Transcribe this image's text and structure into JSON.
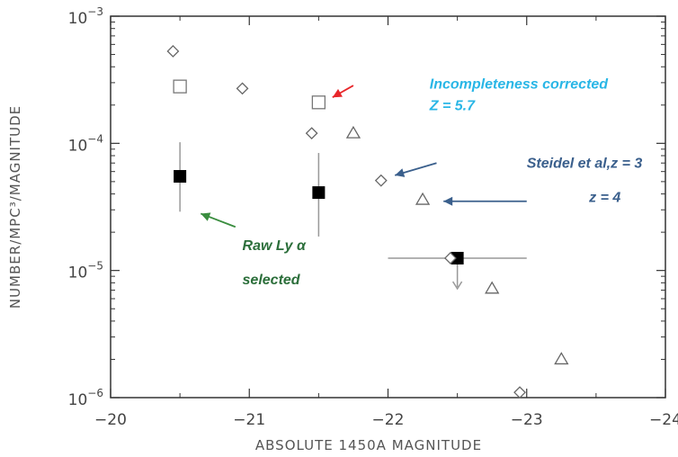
{
  "chart_data": {
    "type": "scatter",
    "xlabel": "ABSOLUTE 1450A MAGNITUDE",
    "ylabel": "NUMBER/MPC³/MAGNITUDE",
    "xlim": [
      -20,
      -24
    ],
    "ylim": [
      1e-06,
      0.001
    ],
    "y_scale": "log",
    "grid": false,
    "x_ticks": [
      -20,
      -21,
      -22,
      -23,
      -24
    ],
    "x_tick_labels": [
      "−20",
      "−21",
      "−22",
      "−23",
      "−24"
    ],
    "y_ticks": [
      {
        "value": 1e-06,
        "base": "10",
        "exp": "−6"
      },
      {
        "value": 1e-05,
        "base": "10",
        "exp": "−5"
      },
      {
        "value": 0.0001,
        "base": "10",
        "exp": "−4"
      },
      {
        "value": 0.001,
        "base": "10",
        "exp": "−3"
      }
    ],
    "series": [
      {
        "marker": "filled-square",
        "color": "#000000",
        "points": [
          {
            "x": -20.5,
            "y": 5.5e-05,
            "y_low": 2.9e-05,
            "y_high": 0.000102
          },
          {
            "x": -21.5,
            "y": 4.1e-05,
            "y_low": 1.85e-05,
            "y_high": 8.4e-05
          },
          {
            "x": -22.5,
            "y": 1.25e-05,
            "x_low": -22.0,
            "x_high": -23.0,
            "upper_limit": true
          }
        ]
      },
      {
        "marker": "open-square",
        "color": "#777777",
        "points": [
          {
            "x": -20.5,
            "y": 0.00028
          },
          {
            "x": -21.5,
            "y": 0.00021
          }
        ]
      },
      {
        "marker": "open-diamond",
        "color": "#666666",
        "points": [
          {
            "x": -20.45,
            "y": 0.00053
          },
          {
            "x": -20.95,
            "y": 0.00027
          },
          {
            "x": -21.45,
            "y": 0.00012
          },
          {
            "x": -21.95,
            "y": 5.1e-05
          },
          {
            "x": -22.45,
            "y": 1.25e-05
          },
          {
            "x": -22.95,
            "y": 1.1e-06
          }
        ]
      },
      {
        "marker": "open-triangle",
        "color": "#666666",
        "points": [
          {
            "x": -21.75,
            "y": 0.00012
          },
          {
            "x": -22.25,
            "y": 3.6e-05
          },
          {
            "x": -22.75,
            "y": 7.2e-06
          },
          {
            "x": -23.25,
            "y": 2e-06
          }
        ]
      }
    ],
    "annotations": [
      {
        "lines": [
          "Incompleteness corrected",
          "Z = 5.7"
        ],
        "color": "#29b6e6",
        "arrow_color": "#e8262a",
        "text_x": -22.3,
        "text_y": 0.00027,
        "arrow_from": [
          -21.75,
          0.000285
        ],
        "arrow_to": [
          -21.6,
          0.00023
        ]
      },
      {
        "lines": [
          "Steidel  et al,z = 3"
        ],
        "color": "#3a5f8c",
        "arrow_color": "#3a5f8c",
        "text_x": -23.0,
        "text_y": 6.4e-05,
        "arrow_from": [
          -22.35,
          7e-05
        ],
        "arrow_to": [
          -22.05,
          5.6e-05
        ]
      },
      {
        "lines": [
          "z = 4"
        ],
        "color": "#3a5f8c",
        "arrow_color": "#3a5f8c",
        "text_x": -23.45,
        "text_y": 3.45e-05,
        "arrow_from": [
          -23.0,
          3.5e-05
        ],
        "arrow_to": [
          -22.4,
          3.5e-05
        ]
      },
      {
        "lines": [
          "Raw Ly  α",
          "selected"
        ],
        "color": "#2b6e3a",
        "arrow_color": "#3a8d3f",
        "text_x": -20.95,
        "text_y": 1.45e-05,
        "arrow_from": [
          -20.9,
          2.2e-05
        ],
        "arrow_to": [
          -20.65,
          2.8e-05
        ]
      }
    ]
  }
}
